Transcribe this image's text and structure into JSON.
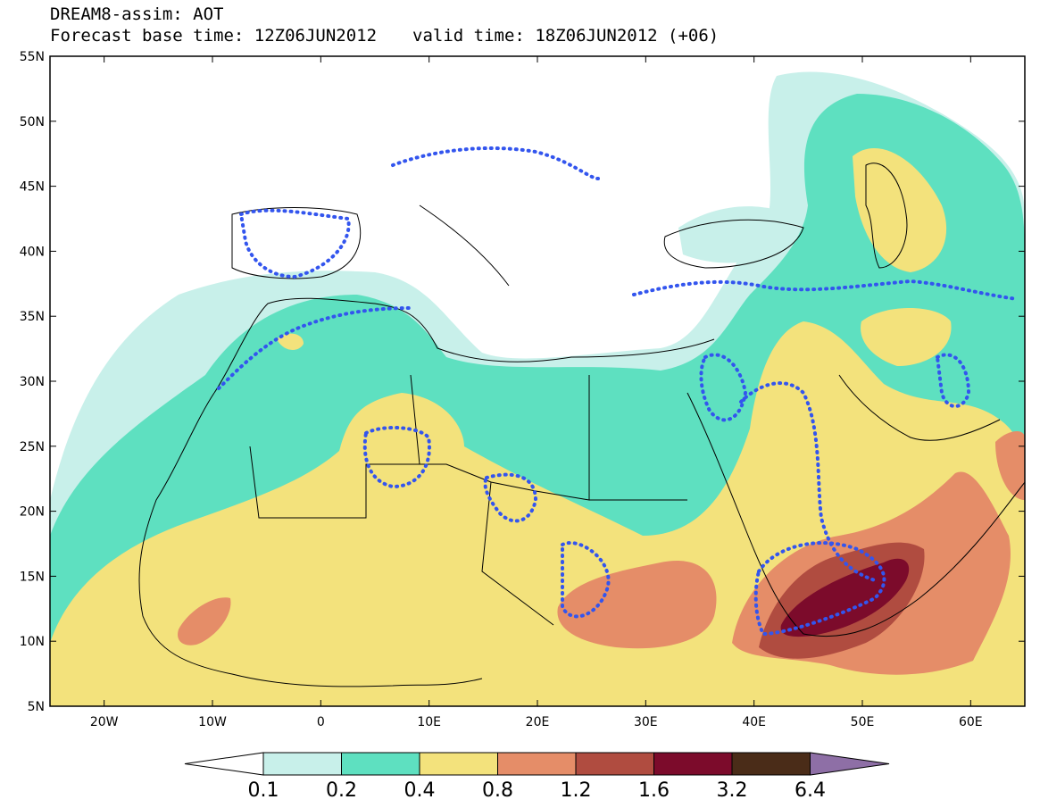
{
  "title": "DREAM8-assim: AOT",
  "subtitle": {
    "base_time": "Forecast base time: 12Z06JUN2012",
    "valid_time": "valid time: 18Z06JUN2012 (+06)"
  },
  "map": {
    "lon_range": [
      -25,
      65
    ],
    "lat_range": [
      5,
      55
    ],
    "lon_ticks": [
      "20W",
      "10W",
      "0",
      "10E",
      "20E",
      "30E",
      "40E",
      "50E",
      "60E"
    ],
    "lat_ticks": [
      "55N",
      "50N",
      "45N",
      "40N",
      "35N",
      "30N",
      "25N",
      "20N",
      "15N",
      "10N",
      "5N"
    ]
  },
  "colorbar": {
    "labels": [
      "0.1",
      "0.2",
      "0.4",
      "0.8",
      "1.2",
      "1.6",
      "3.2",
      "6.4"
    ],
    "colors": [
      "#ffffff",
      "#c8f0ea",
      "#5ee0c0",
      "#f3e27c",
      "#e58d68",
      "#b04c40",
      "#7c0b2b",
      "#4a2c18",
      "#8e6fa6"
    ]
  },
  "colors": {
    "aot_0_1": "#c8f0ea",
    "aot_0_2": "#5ee0c0",
    "aot_0_4": "#f3e27c",
    "aot_0_8": "#e58d68",
    "aot_1_2": "#b04c40",
    "aot_1_6": "#7c0b2b",
    "observation_contour": "#3355ee"
  }
}
